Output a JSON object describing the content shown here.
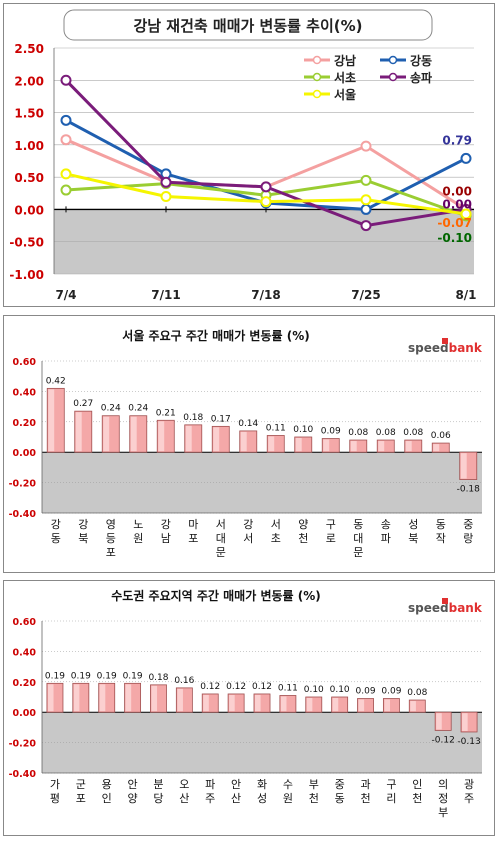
{
  "chart_data": [
    {
      "type": "line",
      "title": "강남 재건축 매매가 변동률 추이(%)",
      "x": [
        "7/4",
        "7/11",
        "7/18",
        "7/25",
        "8/1"
      ],
      "ylim": [
        -1.0,
        2.5
      ],
      "yticks": [
        "2.50",
        "2.00",
        "1.50",
        "1.00",
        "0.50",
        "0.00",
        "-0.50",
        "-1.00"
      ],
      "legend_position": "top-right",
      "series": [
        {
          "name": "강남",
          "color": "#f4a0a0",
          "values": [
            1.08,
            0.42,
            0.35,
            0.98,
            0.0
          ]
        },
        {
          "name": "강동",
          "color": "#1f5fb0",
          "values": [
            1.38,
            0.55,
            0.1,
            0.0,
            0.79
          ]
        },
        {
          "name": "서초",
          "color": "#9acd32",
          "values": [
            0.3,
            0.4,
            0.22,
            0.45,
            -0.1
          ]
        },
        {
          "name": "송파",
          "color": "#7a1c7a",
          "values": [
            2.0,
            0.42,
            0.35,
            -0.25,
            0.0
          ]
        },
        {
          "name": "서울",
          "color": "#f5f500",
          "values": [
            0.55,
            0.2,
            0.12,
            0.15,
            -0.07
          ]
        }
      ],
      "end_labels": [
        {
          "text": "0.79",
          "color": "#333399",
          "value": 0.79
        },
        {
          "text": "0.00",
          "color": "#990000",
          "value": 0.0
        },
        {
          "text": "0.00",
          "color": "#660066",
          "value": 0.0
        },
        {
          "text": "-0.07",
          "color": "#ff6600",
          "value": -0.07
        },
        {
          "text": "-0.10",
          "color": "#006600",
          "value": -0.1
        }
      ]
    },
    {
      "type": "bar",
      "title": "서울 주요구 주간 매매가 변동률 (%)",
      "brand": "speedbank",
      "ylim": [
        -0.4,
        0.6
      ],
      "yticks": [
        "0.60",
        "0.40",
        "0.20",
        "0.00",
        "-0.20",
        "-0.40"
      ],
      "categories": [
        "강동",
        "강북",
        "영등포",
        "노원",
        "강남",
        "마포",
        "서대문",
        "강서",
        "서초",
        "양천",
        "구로",
        "동대문",
        "송파",
        "성북",
        "동작",
        "중랑"
      ],
      "values": [
        0.42,
        0.27,
        0.24,
        0.24,
        0.21,
        0.18,
        0.17,
        0.14,
        0.11,
        0.1,
        0.09,
        0.08,
        0.08,
        0.08,
        0.06,
        -0.18
      ],
      "value_labels": [
        "0.42",
        "0.27",
        "0.24",
        "0.24",
        "0.21",
        "0.18",
        "0.17",
        "0.14",
        "0.11",
        "0.10",
        "0.09",
        "0.08",
        "0.08",
        "0.08",
        "0.06",
        "-0.18"
      ]
    },
    {
      "type": "bar",
      "title": "수도권 주요지역 주간 매매가 변동률 (%)",
      "brand": "speedbank",
      "ylim": [
        -0.4,
        0.6
      ],
      "yticks": [
        "0.60",
        "0.40",
        "0.20",
        "0.00",
        "-0.20",
        "-0.40"
      ],
      "categories": [
        "가평",
        "군포",
        "용인",
        "안양",
        "분당",
        "오산",
        "파주",
        "안산",
        "화성",
        "수원",
        "부천",
        "중동",
        "과천",
        "구리",
        "인천",
        "의정부",
        "광주"
      ],
      "values": [
        0.19,
        0.19,
        0.19,
        0.19,
        0.18,
        0.16,
        0.12,
        0.12,
        0.12,
        0.11,
        0.1,
        0.1,
        0.09,
        0.09,
        0.08,
        -0.12,
        -0.13
      ],
      "value_labels": [
        "0.19",
        "0.19",
        "0.19",
        "0.19",
        "0.18",
        "0.16",
        "0.12",
        "0.12",
        "0.12",
        "0.11",
        "0.10",
        "0.10",
        "0.09",
        "0.09",
        "0.08",
        "-0.12",
        "-0.13"
      ]
    }
  ]
}
